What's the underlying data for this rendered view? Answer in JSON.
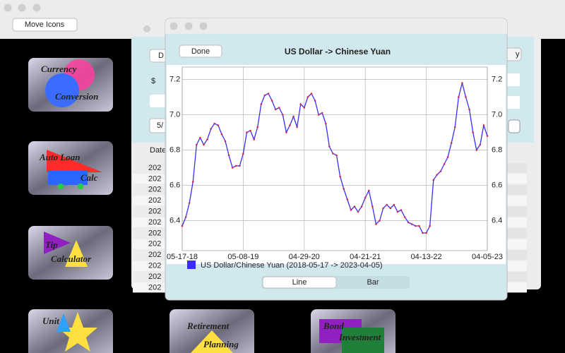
{
  "toolbar": {
    "button": "Move Icons"
  },
  "icons": [
    {
      "lines": [
        "Currency",
        "Conversion"
      ]
    },
    {
      "lines": [
        "Auto Loan",
        "Calc"
      ]
    },
    {
      "lines": [
        "Tip",
        "Calculator"
      ]
    },
    {
      "lines": [
        "Unit"
      ]
    },
    {
      "lines": [
        "Retirement",
        "Planning"
      ]
    },
    {
      "lines": [
        "Bond",
        "Investment"
      ]
    }
  ],
  "background_window": {
    "button": "D",
    "currency": "$",
    "date_field": "5/",
    "column": "Date",
    "rows": [
      "202",
      "202",
      "202",
      "202",
      "202",
      "202",
      "202",
      "202",
      "202",
      "202",
      "202",
      "202"
    ],
    "far_button": "y"
  },
  "chart_window": {
    "done_button": "Done",
    "segments": [
      "Line",
      "Bar"
    ]
  },
  "chart_data": {
    "type": "line",
    "title": "US Dollar -> Chinese Yuan",
    "categories": [
      "05-17-18",
      null,
      null,
      null,
      null,
      null,
      null,
      null,
      null,
      null,
      null,
      null,
      null,
      null,
      null,
      null,
      null,
      "05-08-19",
      null,
      null,
      null,
      null,
      null,
      null,
      null,
      null,
      null,
      null,
      null,
      null,
      null,
      null,
      null,
      null,
      "04-29-20",
      null,
      null,
      null,
      null,
      null,
      null,
      null,
      null,
      null,
      null,
      null,
      null,
      null,
      null,
      null,
      null,
      "04-21-21",
      null,
      null,
      null,
      null,
      null,
      null,
      null,
      null,
      null,
      null,
      null,
      null,
      null,
      null,
      null,
      null,
      "04-13-22",
      null,
      null,
      null,
      null,
      null,
      null,
      null,
      null,
      null,
      null,
      null,
      null,
      null,
      null,
      null,
      null,
      "04-05-23"
    ],
    "series": [
      {
        "name": "US Dollar/Chinese Yuan (2018-05-17 -> 2023-04-05)",
        "color": "#3b2cff",
        "marker_color": "#d02a4a",
        "values": [
          6.37,
          6.42,
          6.5,
          6.62,
          6.83,
          6.87,
          6.83,
          6.86,
          6.92,
          6.95,
          6.94,
          6.89,
          6.85,
          6.77,
          6.7,
          6.71,
          6.71,
          6.78,
          6.9,
          6.91,
          6.86,
          6.93,
          7.06,
          7.11,
          7.12,
          7.08,
          7.03,
          7.04,
          7.0,
          6.9,
          6.94,
          6.99,
          6.93,
          7.06,
          7.04,
          7.1,
          7.12,
          7.08,
          7.0,
          7.01,
          6.95,
          6.82,
          6.78,
          6.77,
          6.65,
          6.58,
          6.52,
          6.46,
          6.48,
          6.45,
          6.48,
          6.53,
          6.57,
          6.48,
          6.38,
          6.4,
          6.47,
          6.49,
          6.47,
          6.49,
          6.45,
          6.46,
          6.42,
          6.39,
          6.38,
          6.37,
          6.37,
          6.33,
          6.33,
          6.37,
          6.63,
          6.66,
          6.68,
          6.72,
          6.76,
          6.84,
          6.93,
          7.1,
          7.18,
          7.1,
          7.03,
          6.9,
          6.8,
          6.83,
          6.94,
          6.88
        ]
      }
    ],
    "ylim": [
      6.23,
      7.27
    ],
    "yticks": [
      6.4,
      6.6,
      6.8,
      {
        "value": 7,
        "label": "7.0"
      },
      7.2
    ],
    "grid": true
  }
}
